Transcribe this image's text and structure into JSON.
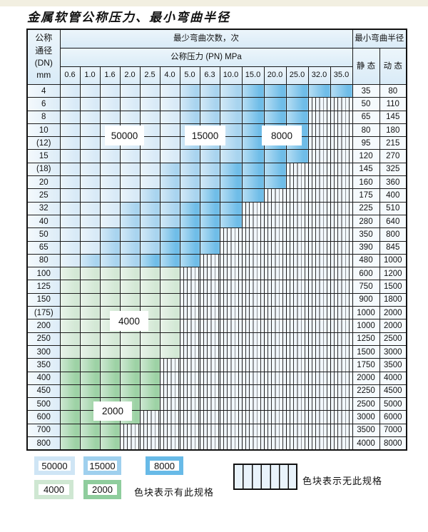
{
  "title": "金属软管公称压力、最小弯曲半径",
  "header": {
    "dn_lines": [
      "公称",
      "通径",
      "(DN)",
      "mm"
    ],
    "bend_cycles": "最少弯曲次数，次",
    "pressure": "公称压力 (PN) MPa",
    "min_radius": "最小弯曲半径",
    "static": "静 态",
    "dynamic": "动 态"
  },
  "pressure_columns": [
    "0.6",
    "1.0",
    "1.6",
    "2.0",
    "2.5",
    "4.0",
    "5.0",
    "6.3",
    "10.0",
    "15.0",
    "20.0",
    "25.0",
    "32.0",
    "35.0"
  ],
  "rows": [
    {
      "dn": "4",
      "max_pn": "35.0",
      "static": "35",
      "dynamic": "80",
      "family": "blue"
    },
    {
      "dn": "6",
      "max_pn": "25.0",
      "static": "50",
      "dynamic": "110",
      "family": "blue"
    },
    {
      "dn": "8",
      "max_pn": "25.0",
      "static": "65",
      "dynamic": "145",
      "family": "blue"
    },
    {
      "dn": "10",
      "max_pn": "25.0",
      "static": "80",
      "dynamic": "180",
      "family": "blue"
    },
    {
      "dn": "(12)",
      "max_pn": "25.0",
      "static": "95",
      "dynamic": "215",
      "family": "blue"
    },
    {
      "dn": "15",
      "max_pn": "25.0",
      "static": "120",
      "dynamic": "270",
      "family": "blue"
    },
    {
      "dn": "(18)",
      "max_pn": "20.0",
      "static": "145",
      "dynamic": "325",
      "family": "blue"
    },
    {
      "dn": "20",
      "max_pn": "20.0",
      "static": "160",
      "dynamic": "360",
      "family": "blue"
    },
    {
      "dn": "25",
      "max_pn": "15.0",
      "static": "175",
      "dynamic": "400",
      "family": "blue"
    },
    {
      "dn": "32",
      "max_pn": "10.0",
      "static": "225",
      "dynamic": "510",
      "family": "blue"
    },
    {
      "dn": "40",
      "max_pn": "10.0",
      "static": "280",
      "dynamic": "640",
      "family": "blue"
    },
    {
      "dn": "50",
      "max_pn": "6.3",
      "static": "350",
      "dynamic": "800",
      "family": "blue"
    },
    {
      "dn": "65",
      "max_pn": "6.3",
      "static": "390",
      "dynamic": "845",
      "family": "blue"
    },
    {
      "dn": "80",
      "max_pn": "5.0",
      "static": "480",
      "dynamic": "1000",
      "family": "blue"
    },
    {
      "dn": "100",
      "max_pn": "4.0",
      "static": "600",
      "dynamic": "1200",
      "family": "green-light"
    },
    {
      "dn": "125",
      "max_pn": "4.0",
      "static": "750",
      "dynamic": "1500",
      "family": "green-light"
    },
    {
      "dn": "150",
      "max_pn": "4.0",
      "static": "900",
      "dynamic": "1800",
      "family": "green-light"
    },
    {
      "dn": "(175)",
      "max_pn": "4.0",
      "static": "1000",
      "dynamic": "2000",
      "family": "green-light"
    },
    {
      "dn": "200",
      "max_pn": "4.0",
      "static": "1000",
      "dynamic": "2000",
      "family": "green-light"
    },
    {
      "dn": "250",
      "max_pn": "4.0",
      "static": "1250",
      "dynamic": "2500",
      "family": "green-light"
    },
    {
      "dn": "300",
      "max_pn": "4.0",
      "static": "1500",
      "dynamic": "3000",
      "family": "green-light"
    },
    {
      "dn": "350",
      "max_pn": "2.5",
      "static": "1750",
      "dynamic": "3500",
      "family": "green-dark"
    },
    {
      "dn": "400",
      "max_pn": "2.5",
      "static": "2000",
      "dynamic": "4000",
      "family": "green-dark"
    },
    {
      "dn": "450",
      "max_pn": "2.5",
      "static": "2250",
      "dynamic": "4500",
      "family": "green-dark"
    },
    {
      "dn": "500",
      "max_pn": "2.5",
      "static": "2500",
      "dynamic": "5000",
      "family": "green-dark"
    },
    {
      "dn": "600",
      "max_pn": "2.0",
      "static": "3000",
      "dynamic": "6000",
      "family": "green-dark"
    },
    {
      "dn": "700",
      "max_pn": "1.6",
      "static": "3500",
      "dynamic": "7000",
      "family": "green-dark"
    },
    {
      "dn": "800",
      "max_pn": "1.6",
      "static": "4000",
      "dynamic": "8000",
      "family": "green-dark"
    }
  ],
  "zone_labels": [
    {
      "text": "50000"
    },
    {
      "text": "15000"
    },
    {
      "text": "8000"
    },
    {
      "text": "4000"
    },
    {
      "text": "2000"
    }
  ],
  "colors": {
    "zone_50000": "#d8eaf7",
    "zone_15000": "#a8d4ef",
    "zone_8000": "#6fbde8",
    "zone_4000": "#d3e8d5",
    "zone_2000": "#9dd2a5",
    "hatch_bg": "#f1f7fc",
    "header_bg": "#d9ebf7"
  },
  "legend": {
    "swatches": [
      {
        "label": "50000",
        "color": "#cfe5f5"
      },
      {
        "label": "15000",
        "color": "#9fd0ee"
      },
      {
        "label": "8000",
        "color": "#68bae7"
      },
      {
        "label": "4000",
        "color": "#cfe7d2"
      },
      {
        "label": "2000",
        "color": "#8fcd9d"
      }
    ],
    "has_spec_text": "色块表示有此规格",
    "no_spec_text": "色块表示无此规格"
  }
}
